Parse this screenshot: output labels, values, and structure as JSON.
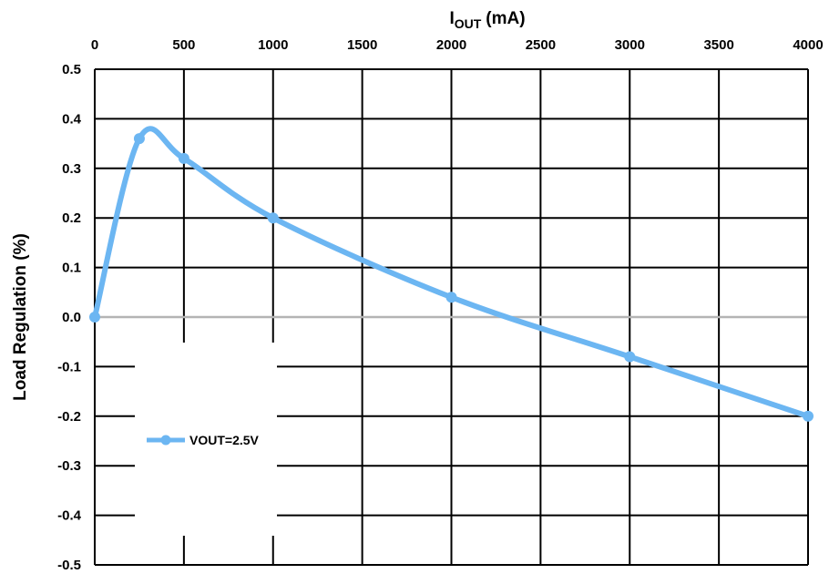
{
  "chart_data": {
    "type": "line",
    "xlabel": "I",
    "xlabel_sub": "OUT",
    "xlabel_unit": "(mA)",
    "ylabel": "Load Regulation (%)",
    "x_axis_position": "top",
    "xlim": [
      0,
      4000
    ],
    "ylim": [
      -0.5,
      0.5
    ],
    "x_ticks": [
      0,
      500,
      1000,
      1500,
      2000,
      2500,
      3000,
      3500,
      4000
    ],
    "y_ticks": [
      0.5,
      0.4,
      0.3,
      0.2,
      0.1,
      0.0,
      -0.1,
      -0.2,
      -0.3,
      -0.4,
      -0.5
    ],
    "x_tick_labels": [
      "0",
      "500",
      "1000",
      "1500",
      "2000",
      "2500",
      "3000",
      "3500",
      "4000"
    ],
    "y_tick_labels": [
      "0.5",
      "0.4",
      "0.3",
      "0.2",
      "0.1",
      "0.0",
      "-0.1",
      "-0.2",
      "-0.3",
      "-0.4",
      "-0.5"
    ],
    "grid": true,
    "legend_position": "bottom-left",
    "series": [
      {
        "name": "VOUT=2.5V",
        "color": "#6cb6f2",
        "x": [
          0,
          250,
          500,
          1000,
          2000,
          3000,
          4000
        ],
        "y": [
          0.0,
          0.36,
          0.32,
          0.2,
          0.04,
          -0.08,
          -0.2
        ]
      }
    ]
  }
}
